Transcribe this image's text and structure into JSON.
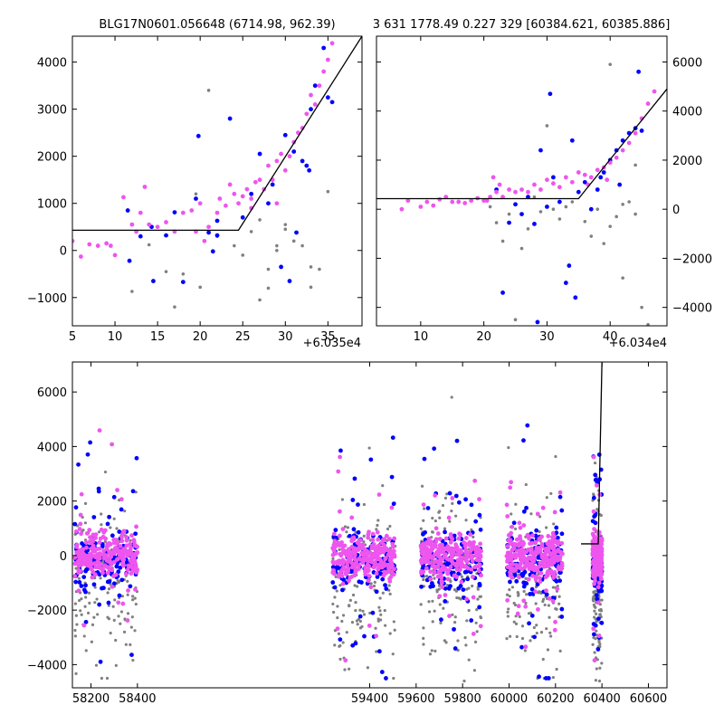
{
  "chart_data": [
    {
      "type": "scatter",
      "title": "BLG17N0601.056648 (6714.98, 962.39)",
      "x_offset_label": "+6.035e4",
      "xlim": [
        5,
        39
      ],
      "ylim": [
        -1600,
        4550
      ],
      "xticks": [
        5,
        10,
        15,
        20,
        25,
        30,
        35
      ],
      "yticks": [
        -1000,
        0,
        1000,
        2000,
        3000,
        4000
      ],
      "y_axis_side": "left",
      "model_line": {
        "x": [
          5,
          24.5,
          39
        ],
        "y": [
          430,
          430,
          4550
        ]
      },
      "series": [
        {
          "color": "#808080",
          "points": [
            [
              12,
              -870
            ],
            [
              16,
              -450
            ],
            [
              17,
              -1200
            ],
            [
              18,
              -500
            ],
            [
              20,
              -780
            ],
            [
              22,
              300
            ],
            [
              24,
              100
            ],
            [
              25,
              -100
            ],
            [
              26,
              400
            ],
            [
              27,
              650
            ],
            [
              27,
              -1050
            ],
            [
              28,
              -400
            ],
            [
              28,
              -800
            ],
            [
              29,
              100
            ],
            [
              30,
              550
            ],
            [
              30,
              450
            ],
            [
              31,
              200
            ],
            [
              32,
              100
            ],
            [
              33,
              -350
            ],
            [
              33,
              -780
            ],
            [
              34,
              -400
            ],
            [
              21,
              3400
            ],
            [
              35,
              1250
            ],
            [
              19.5,
              1200
            ],
            [
              14,
              120
            ],
            [
              29,
              0
            ]
          ]
        },
        {
          "color": "#0000ff",
          "points": [
            [
              11.5,
              850
            ],
            [
              11.7,
              -220
            ],
            [
              13,
              300
            ],
            [
              14.3,
              500
            ],
            [
              14.5,
              -650
            ],
            [
              16,
              320
            ],
            [
              17,
              810
            ],
            [
              18,
              -670
            ],
            [
              19.5,
              1100
            ],
            [
              19.8,
              2430
            ],
            [
              21,
              380
            ],
            [
              21.5,
              -20
            ],
            [
              22,
              320
            ],
            [
              22,
              630
            ],
            [
              23.5,
              2800
            ],
            [
              25,
              700
            ],
            [
              26,
              1200
            ],
            [
              27,
              2050
            ],
            [
              28,
              1000
            ],
            [
              28.5,
              1400
            ],
            [
              29.5,
              -350
            ],
            [
              30,
              2450
            ],
            [
              30.5,
              -650
            ],
            [
              31,
              2100
            ],
            [
              32,
              1900
            ],
            [
              32.5,
              1800
            ],
            [
              33,
              3000
            ],
            [
              33.5,
              3500
            ],
            [
              34.5,
              4300
            ],
            [
              35,
              3250
            ],
            [
              35.5,
              3150
            ],
            [
              31.3,
              380
            ],
            [
              32.8,
              1700
            ]
          ]
        },
        {
          "color": "#ee55ee",
          "points": [
            [
              5,
              200
            ],
            [
              6,
              -130
            ],
            [
              7,
              130
            ],
            [
              8,
              100
            ],
            [
              9,
              150
            ],
            [
              9.5,
              100
            ],
            [
              10,
              -100
            ],
            [
              11,
              1130
            ],
            [
              12,
              550
            ],
            [
              12.5,
              400
            ],
            [
              13,
              800
            ],
            [
              13.5,
              1350
            ],
            [
              14,
              550
            ],
            [
              15,
              500
            ],
            [
              16,
              600
            ],
            [
              17,
              400
            ],
            [
              18,
              800
            ],
            [
              19,
              850
            ],
            [
              19.5,
              400
            ],
            [
              20,
              1000
            ],
            [
              20.5,
              200
            ],
            [
              21,
              500
            ],
            [
              22,
              800
            ],
            [
              22.3,
              1100
            ],
            [
              23,
              950
            ],
            [
              23.5,
              1400
            ],
            [
              24,
              1200
            ],
            [
              24.5,
              1000
            ],
            [
              25,
              1150
            ],
            [
              25.5,
              1300
            ],
            [
              26,
              1100
            ],
            [
              26.5,
              1450
            ],
            [
              27,
              1500
            ],
            [
              27.5,
              1300
            ],
            [
              28,
              1800
            ],
            [
              28.5,
              1500
            ],
            [
              29,
              1900
            ],
            [
              29.5,
              2050
            ],
            [
              30,
              1700
            ],
            [
              30.5,
              2000
            ],
            [
              31,
              2300
            ],
            [
              31.5,
              2500
            ],
            [
              32,
              2600
            ],
            [
              32.5,
              2900
            ],
            [
              33,
              3300
            ],
            [
              33.5,
              3100
            ],
            [
              34,
              3500
            ],
            [
              34.5,
              3800
            ],
            [
              35,
              4050
            ],
            [
              35.5,
              4400
            ],
            [
              29,
              1000
            ],
            [
              26,
              900
            ]
          ]
        }
      ]
    },
    {
      "type": "scatter",
      "title": "3 631 1778.49 0.227 329 [60384.621, 60385.886]",
      "x_offset_label": "+6.034e4",
      "xlim": [
        3,
        49
      ],
      "ylim": [
        -4750,
        7050
      ],
      "xticks": [
        10,
        20,
        30,
        40
      ],
      "yticks": [
        -4000,
        -2000,
        0,
        2000,
        4000,
        6000
      ],
      "y_axis_side": "right",
      "model_line": {
        "x": [
          3,
          35,
          49
        ],
        "y": [
          430,
          430,
          4900
        ]
      },
      "series": [
        {
          "color": "#808080",
          "points": [
            [
              21,
              100
            ],
            [
              22,
              -550
            ],
            [
              23,
              -1300
            ],
            [
              24,
              -200
            ],
            [
              25,
              -4500
            ],
            [
              26,
              -1600
            ],
            [
              27,
              -800
            ],
            [
              28,
              500
            ],
            [
              29,
              -100
            ],
            [
              30,
              3400
            ],
            [
              31,
              0
            ],
            [
              32,
              -400
            ],
            [
              33,
              100
            ],
            [
              34,
              300
            ],
            [
              36,
              -500
            ],
            [
              37,
              -1100
            ],
            [
              38,
              0
            ],
            [
              39,
              -1400
            ],
            [
              40,
              -700
            ],
            [
              41,
              -300
            ],
            [
              42,
              200
            ],
            [
              43,
              300
            ],
            [
              44,
              -200
            ],
            [
              45,
              -4000
            ],
            [
              46,
              -4700
            ],
            [
              40,
              5900
            ],
            [
              42,
              -2800
            ],
            [
              44,
              1800
            ]
          ]
        },
        {
          "color": "#0000ff",
          "points": [
            [
              22,
              800
            ],
            [
              23,
              -3400
            ],
            [
              24,
              -550
            ],
            [
              25,
              200
            ],
            [
              26,
              -200
            ],
            [
              27,
              500
            ],
            [
              28,
              -600
            ],
            [
              28.5,
              -4600
            ],
            [
              29,
              2400
            ],
            [
              30,
              100
            ],
            [
              30.5,
              4700
            ],
            [
              31,
              1300
            ],
            [
              32,
              300
            ],
            [
              33,
              -3000
            ],
            [
              33.5,
              -2300
            ],
            [
              34,
              2800
            ],
            [
              34.5,
              -3600
            ],
            [
              35,
              700
            ],
            [
              36,
              1100
            ],
            [
              37,
              0
            ],
            [
              38,
              800
            ],
            [
              39,
              1500
            ],
            [
              40,
              2000
            ],
            [
              41,
              2400
            ],
            [
              42,
              2800
            ],
            [
              43,
              3100
            ],
            [
              44,
              3300
            ],
            [
              44.5,
              5600
            ],
            [
              45,
              3200
            ],
            [
              38.5,
              1300
            ],
            [
              41.5,
              1000
            ]
          ]
        },
        {
          "color": "#ee55ee",
          "points": [
            [
              7,
              0
            ],
            [
              8,
              350
            ],
            [
              10,
              100
            ],
            [
              11,
              300
            ],
            [
              12,
              150
            ],
            [
              13,
              400
            ],
            [
              14,
              500
            ],
            [
              15,
              300
            ],
            [
              16,
              300
            ],
            [
              17,
              250
            ],
            [
              18,
              350
            ],
            [
              19,
              450
            ],
            [
              20,
              350
            ],
            [
              20.5,
              350
            ],
            [
              21,
              500
            ],
            [
              21.5,
              1300
            ],
            [
              22,
              700
            ],
            [
              22.5,
              1000
            ],
            [
              23,
              500
            ],
            [
              24,
              800
            ],
            [
              25,
              700
            ],
            [
              26,
              800
            ],
            [
              27,
              700
            ],
            [
              28,
              1000
            ],
            [
              29,
              800
            ],
            [
              30,
              1200
            ],
            [
              31,
              1050
            ],
            [
              32,
              900
            ],
            [
              33,
              1300
            ],
            [
              34,
              1100
            ],
            [
              35,
              1500
            ],
            [
              36,
              1400
            ],
            [
              37,
              1300
            ],
            [
              38,
              1600
            ],
            [
              39,
              1700
            ],
            [
              40,
              1900
            ],
            [
              41,
              2100
            ],
            [
              42,
              2400
            ],
            [
              43,
              2700
            ],
            [
              44,
              3100
            ],
            [
              45,
              3700
            ],
            [
              46,
              4300
            ],
            [
              47,
              4800
            ],
            [
              36.5,
              1000
            ],
            [
              39.5,
              1200
            ]
          ]
        }
      ]
    },
    {
      "type": "scatter",
      "title": "",
      "x_offset_label": "",
      "xlim": [
        58120,
        60680
      ],
      "ylim": [
        -4850,
        7100
      ],
      "xticks": [
        58200,
        58400,
        59400,
        59600,
        59800,
        60000,
        60200,
        60400,
        60600
      ],
      "yticks": [
        -4000,
        -2000,
        0,
        2000,
        4000,
        6000
      ],
      "y_axis_side": "left",
      "model_line": {
        "x": [
          60310,
          60384,
          60400
        ],
        "y": [
          430,
          430,
          7100
        ]
      },
      "seasons": [
        {
          "x_range": [
            58130,
            58400
          ],
          "y_range": [
            -4500,
            6600
          ]
        },
        {
          "x_range": [
            59240,
            59510
          ],
          "y_range": [
            -4500,
            6800
          ]
        },
        {
          "x_range": [
            59620,
            59880
          ],
          "y_range": [
            -4600,
            6900
          ]
        },
        {
          "x_range": [
            59990,
            60230
          ],
          "y_range": [
            -4500,
            6500
          ]
        },
        {
          "x_range": [
            60360,
            60400
          ],
          "y_range": [
            -4600,
            5900
          ]
        }
      ],
      "series": [
        {
          "name": "",
          "color": "#808080"
        },
        {
          "name": "",
          "color": "#0000ff"
        },
        {
          "name": "",
          "color": "#ee55ee"
        }
      ]
    }
  ]
}
